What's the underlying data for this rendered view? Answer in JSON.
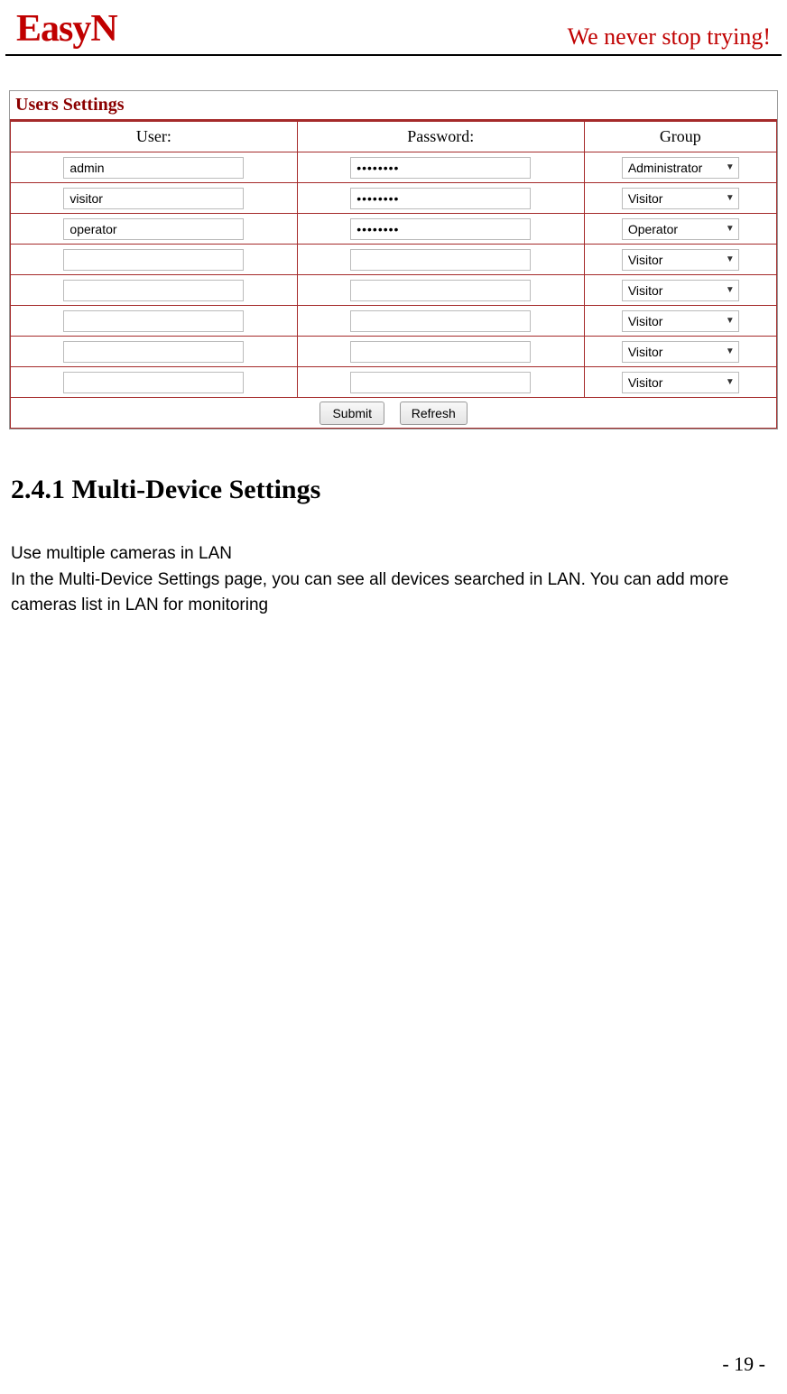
{
  "header": {
    "brand": "EasyN",
    "slogan": "We never stop trying!"
  },
  "panel": {
    "title": "Users Settings",
    "columns": {
      "user": "User:",
      "password": "Password:",
      "group": "Group"
    },
    "rows": [
      {
        "user": "admin",
        "password": "••••••••",
        "group": "Administrator"
      },
      {
        "user": "visitor",
        "password": "••••••••",
        "group": "Visitor"
      },
      {
        "user": "operator",
        "password": "••••••••",
        "group": "Operator"
      },
      {
        "user": "",
        "password": "",
        "group": "Visitor"
      },
      {
        "user": "",
        "password": "",
        "group": "Visitor"
      },
      {
        "user": "",
        "password": "",
        "group": "Visitor"
      },
      {
        "user": "",
        "password": "",
        "group": "Visitor"
      },
      {
        "user": "",
        "password": "",
        "group": "Visitor"
      }
    ],
    "buttons": {
      "submit": "Submit",
      "refresh": "Refresh"
    }
  },
  "section": {
    "heading": "2.4.1 Multi-Device Settings",
    "p1": "Use multiple cameras in LAN",
    "p2": "In the Multi-Device Settings page, you can see all devices searched in LAN. You can add more cameras list in LAN for monitoring"
  },
  "page_number": "- 19 -",
  "colors": {
    "brand_red": "#c00000",
    "table_border": "#a52a2a",
    "title_color": "#8b0000"
  }
}
